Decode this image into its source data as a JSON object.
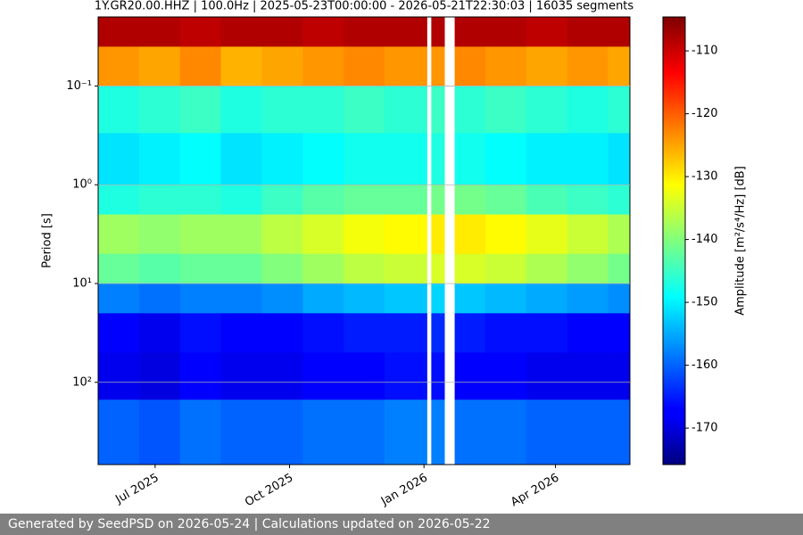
{
  "chart_data": {
    "type": "spectrogram",
    "title": "1Y.GR20.00.HHZ | 100.0Hz | 2025-05-23T00:00:00 - 2026-05-21T22:30:03 | 16035 segments",
    "y_label": "Period [s]",
    "colorbar_label": "Amplitude [m²/s⁴/Hz] [dB]",
    "y_scale": "log",
    "y_inverted": true,
    "grid": true,
    "colormap": "jet",
    "xlim": [
      "2025-05-23T00:00:00",
      "2026-05-21T22:30:03"
    ],
    "xticks": [
      {
        "value": "2025-07",
        "label": "Jul 2025"
      },
      {
        "value": "2025-10",
        "label": "Oct 2025"
      },
      {
        "value": "2026-01",
        "label": "Jan 2026"
      },
      {
        "value": "2026-04",
        "label": "Apr 2026"
      }
    ],
    "ylim": [
      0.02,
      680
    ],
    "yticks": [
      {
        "value": 0.1,
        "label": "10⁻¹"
      },
      {
        "value": 1,
        "label": "10⁰"
      },
      {
        "value": 10,
        "label": "10¹"
      },
      {
        "value": 100,
        "label": "10²"
      }
    ],
    "clim": [
      -175.8,
      -104.6
    ],
    "cticks": [
      -110,
      -120,
      -130,
      -140,
      -150,
      -160,
      -170
    ],
    "x_edges": [
      "2025-05-23T00:00:00",
      "2025-06-20T00:00:00",
      "2025-07-18T00:00:00",
      "2025-08-15T00:00:00",
      "2025-09-12T00:00:00",
      "2025-10-10T00:00:00",
      "2025-11-07T00:00:00",
      "2025-12-05T00:00:00",
      "2026-01-03T00:00:00",
      "2026-01-06T00:00:00",
      "2026-01-15T00:00:00",
      "2026-01-22T00:00:00",
      "2026-02-12T00:00:00",
      "2026-03-12T00:00:00",
      "2026-04-09T00:00:00",
      "2026-05-07T00:00:00",
      "2026-05-21T22:30:03"
    ],
    "period_edges": [
      0.02,
      0.04,
      0.1,
      0.3,
      1,
      2,
      5,
      10,
      20,
      50,
      150,
      680
    ],
    "z": [
      [
        -108,
        -108,
        -109,
        -108,
        -108,
        -109,
        -108,
        -108,
        null,
        -108,
        null,
        -108,
        -108,
        -109,
        -108,
        -108
      ],
      [
        -124,
        -125,
        -123,
        -126,
        -125,
        -124,
        -123,
        -124,
        null,
        -124,
        null,
        -123,
        -124,
        -125,
        -124,
        -125
      ],
      [
        -147,
        -146,
        -145,
        -147,
        -146,
        -146,
        -145,
        -146,
        null,
        -145,
        null,
        -146,
        -145,
        -146,
        -147,
        -146
      ],
      [
        -151,
        -150,
        -149,
        -151,
        -150,
        -149,
        -148,
        -148,
        null,
        -147,
        null,
        -148,
        -149,
        -150,
        -150,
        -151
      ],
      [
        -147,
        -146,
        -146,
        -147,
        -145,
        -143,
        -142,
        -142,
        null,
        -141,
        null,
        -141,
        -142,
        -144,
        -145,
        -146
      ],
      [
        -138,
        -139,
        -138,
        -138,
        -136,
        -134,
        -132,
        -131,
        null,
        -130,
        null,
        -130,
        -131,
        -133,
        -135,
        -137
      ],
      [
        -142,
        -143,
        -142,
        -142,
        -140,
        -138,
        -136,
        -135,
        null,
        -134,
        null,
        -134,
        -135,
        -137,
        -139,
        -141
      ],
      [
        -158,
        -159,
        -158,
        -158,
        -157,
        -155,
        -154,
        -153,
        null,
        -152,
        null,
        -153,
        -154,
        -155,
        -156,
        -157
      ],
      [
        -167,
        -168,
        -166,
        -167,
        -167,
        -166,
        -165,
        -165,
        null,
        -164,
        null,
        -165,
        -166,
        -166,
        -167,
        -167
      ],
      [
        -168,
        -169,
        -167,
        -168,
        -168,
        -167,
        -167,
        -166,
        null,
        -166,
        null,
        -167,
        -167,
        -168,
        -168,
        -168
      ],
      [
        -160,
        -161,
        -159,
        -160,
        -160,
        -159,
        -159,
        -158,
        null,
        -158,
        null,
        -159,
        -159,
        -160,
        -160,
        -160
      ]
    ]
  },
  "footer": "Generated by SeedPSD on 2026-05-24 | Calculations updated on 2026-05-22"
}
